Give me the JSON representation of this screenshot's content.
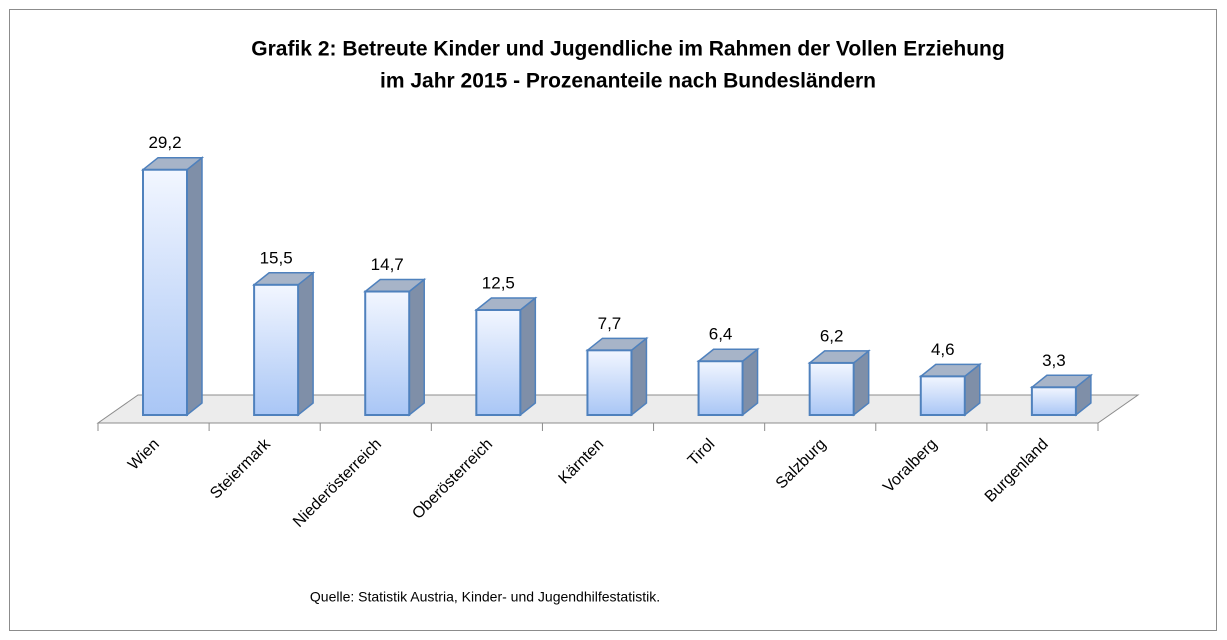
{
  "chart_data": {
    "type": "bar3d",
    "title": "Grafik 2: Betreute Kinder und Jugendliche im Rahmen der Vollen Erziehung",
    "subtitle": "im Jahr 2015 - Prozenanteile nach Bundesländern",
    "categories": [
      "Wien",
      "Steiermark",
      "Niederösterreich",
      "Oberösterreich",
      "Kärnten",
      "Tirol",
      "Salzburg",
      "Voralberg",
      "Burgenland"
    ],
    "values": [
      29.2,
      15.5,
      14.7,
      12.5,
      7.7,
      6.4,
      6.2,
      4.6,
      3.3
    ],
    "value_labels": [
      "29,2",
      "15,5",
      "14,7",
      "12,5",
      "7,7",
      "6,4",
      "6,2",
      "4,6",
      "3,3"
    ],
    "color": "#4f81bd",
    "source": "Quelle: Statistik Austria, Kinder- und Jugendhilfestatistik."
  }
}
